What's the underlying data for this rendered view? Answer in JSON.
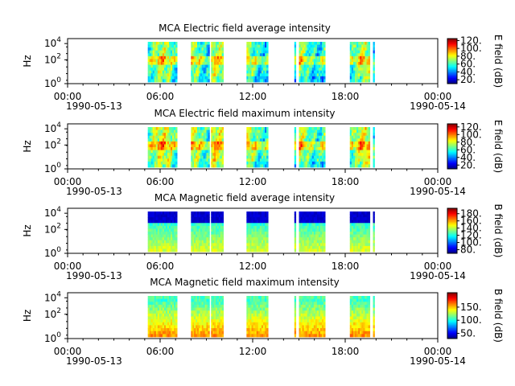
{
  "chart_data": [
    {
      "type": "heatmap",
      "title": "MCA  Electric field average intensity",
      "ylabel": "Hz",
      "colorbar_label": "E field (dB)",
      "colorbar_range": [
        10,
        125
      ],
      "colorbar_ticks": [
        "20.",
        "40.",
        "60.",
        "80.",
        "100.",
        "120."
      ],
      "colorbar_tick_values": [
        20,
        40,
        60,
        80,
        100,
        120
      ],
      "y_scale": "log",
      "y_ticks": [
        "10^0",
        "10^2",
        "10^4"
      ],
      "x_ticks": [
        "00:00",
        "06:00",
        "12:00",
        "18:00",
        "00:00"
      ],
      "x_dates": [
        "1990-05-13",
        "1990-05-14"
      ],
      "x_range_hours": [
        0,
        24
      ],
      "data_segments_hours": [
        [
          5.2,
          7.1
        ],
        [
          8.0,
          9.2
        ],
        [
          9.3,
          10.1
        ],
        [
          11.6,
          13.0
        ],
        [
          14.7,
          14.8
        ],
        [
          15.0,
          16.7
        ],
        [
          18.3,
          19.6
        ],
        [
          19.8,
          19.9
        ]
      ],
      "pattern": "electric-avg"
    },
    {
      "type": "heatmap",
      "title": "MCA  Electric field maximum intensity",
      "ylabel": "Hz",
      "colorbar_label": "E field (dB)",
      "colorbar_range": [
        10,
        128
      ],
      "colorbar_ticks": [
        "20.",
        "40.",
        "60.",
        "80.",
        "100.",
        "120."
      ],
      "colorbar_tick_values": [
        20,
        40,
        60,
        80,
        100,
        120
      ],
      "y_scale": "log",
      "y_ticks": [
        "10^0",
        "10^2",
        "10^4"
      ],
      "x_ticks": [
        "00:00",
        "06:00",
        "12:00",
        "18:00",
        "00:00"
      ],
      "x_dates": [
        "1990-05-13",
        "1990-05-14"
      ],
      "x_range_hours": [
        0,
        24
      ],
      "data_segments_hours": [
        [
          5.2,
          7.1
        ],
        [
          8.0,
          9.2
        ],
        [
          9.3,
          10.1
        ],
        [
          11.6,
          13.0
        ],
        [
          14.7,
          14.8
        ],
        [
          15.0,
          16.7
        ],
        [
          18.3,
          19.6
        ],
        [
          19.8,
          19.9
        ]
      ],
      "pattern": "electric-max"
    },
    {
      "type": "heatmap",
      "title": "MCA  Magnetic field average intensity",
      "ylabel": "Hz",
      "colorbar_label": "B field (dB)",
      "colorbar_range": [
        70,
        195
      ],
      "colorbar_ticks": [
        "80.",
        "100.",
        "120.",
        "140.",
        "160.",
        "180."
      ],
      "colorbar_tick_values": [
        80,
        100,
        120,
        140,
        160,
        180
      ],
      "y_scale": "log",
      "y_ticks": [
        "10^0",
        "10^2",
        "10^4"
      ],
      "x_ticks": [
        "00:00",
        "06:00",
        "12:00",
        "18:00",
        "00:00"
      ],
      "x_dates": [
        "1990-05-13",
        "1990-05-14"
      ],
      "x_range_hours": [
        0,
        24
      ],
      "data_segments_hours": [
        [
          5.2,
          7.1
        ],
        [
          8.0,
          9.2
        ],
        [
          9.3,
          10.1
        ],
        [
          11.6,
          13.0
        ],
        [
          14.7,
          14.8
        ],
        [
          15.0,
          16.7
        ],
        [
          18.3,
          19.6
        ],
        [
          19.8,
          19.9
        ]
      ],
      "pattern": "magnetic-avg"
    },
    {
      "type": "heatmap",
      "title": "MCA  Magnetic field maximum intensity",
      "ylabel": "Hz",
      "colorbar_label": "B field (dB)",
      "colorbar_range": [
        30,
        205
      ],
      "colorbar_ticks": [
        "50.",
        "100.",
        "150."
      ],
      "colorbar_tick_values": [
        50,
        100,
        150
      ],
      "y_scale": "log",
      "y_ticks": [
        "10^0",
        "10^2",
        "10^4"
      ],
      "x_ticks": [
        "00:00",
        "06:00",
        "12:00",
        "18:00",
        "00:00"
      ],
      "x_dates": [
        "1990-05-13",
        "1990-05-14"
      ],
      "x_range_hours": [
        0,
        24
      ],
      "data_segments_hours": [
        [
          5.2,
          7.1
        ],
        [
          8.0,
          9.2
        ],
        [
          9.3,
          10.1
        ],
        [
          11.6,
          13.0
        ],
        [
          14.7,
          14.8
        ],
        [
          15.0,
          16.7
        ],
        [
          18.3,
          19.6
        ],
        [
          19.8,
          19.9
        ]
      ],
      "pattern": "magnetic-max"
    }
  ]
}
